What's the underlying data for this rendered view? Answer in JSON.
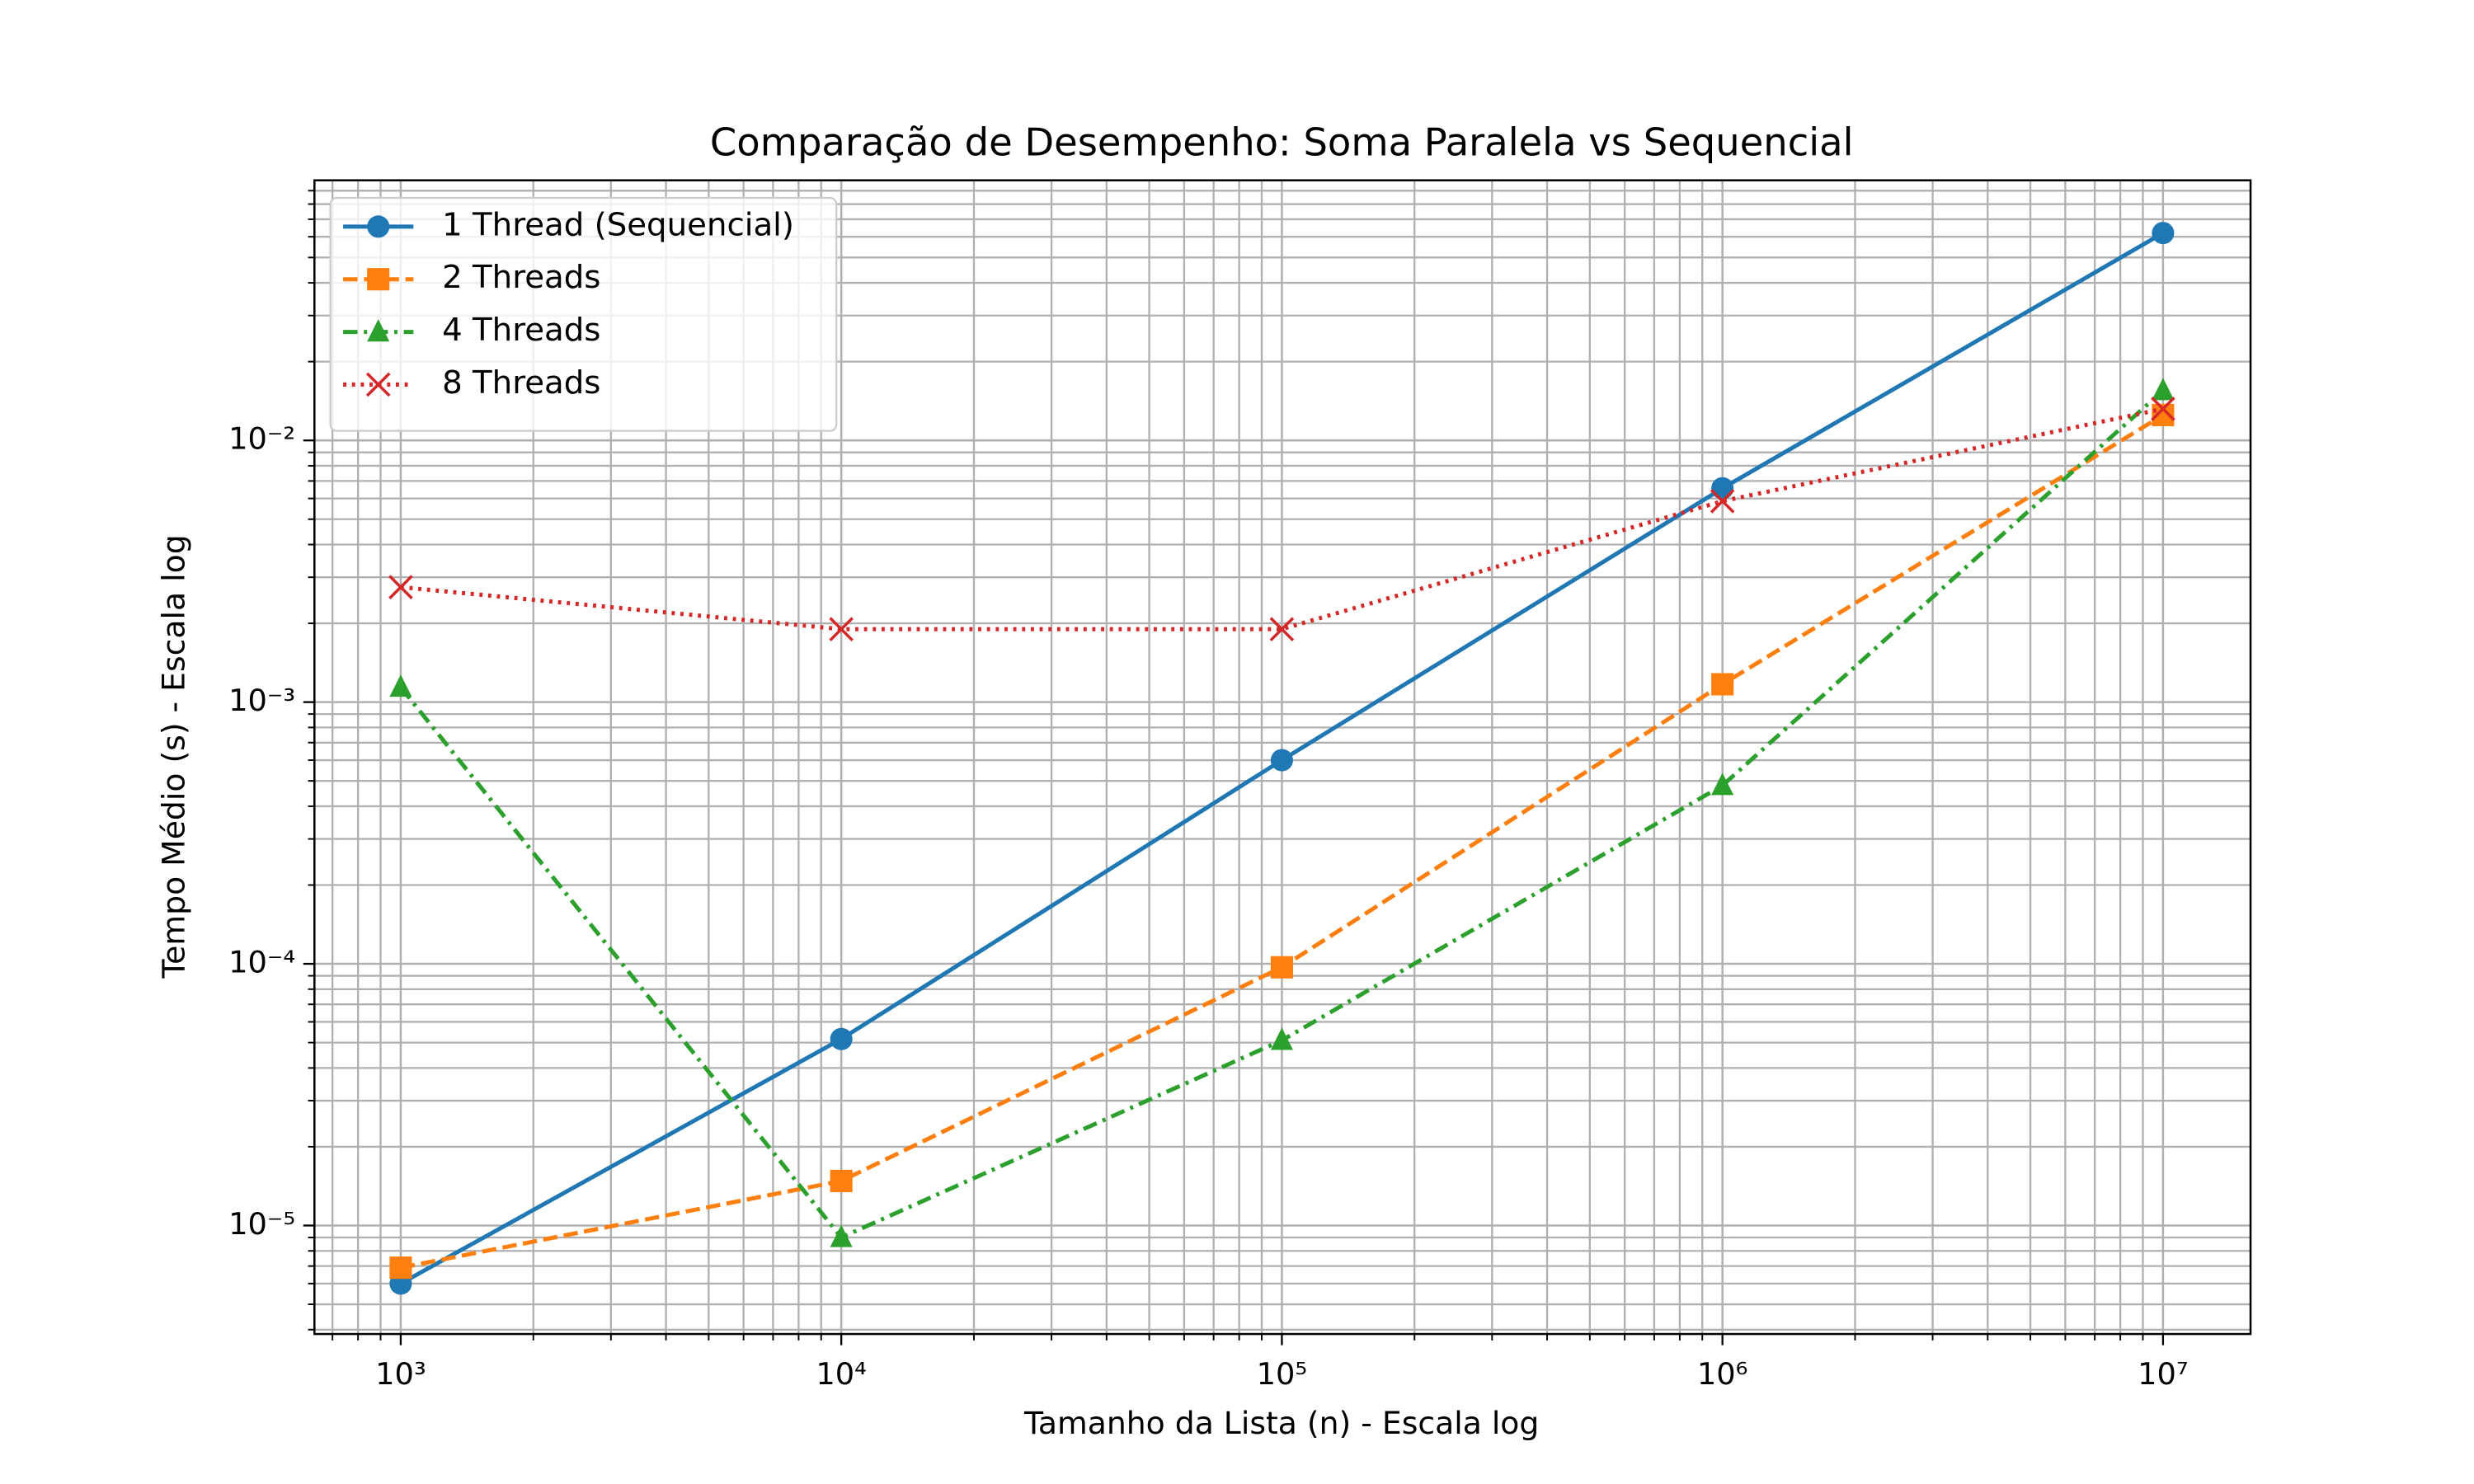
{
  "chart_data": {
    "type": "line",
    "title": "Comparação de Desempenho: Soma Paralela vs Sequencial",
    "xlabel": "Tamanho da Lista (n) - Escala log",
    "ylabel": "Tempo Médio (s) - Escala log",
    "xscale": "log",
    "yscale": "log",
    "grid": true,
    "legend": "upper left",
    "x": [
      1000,
      10000,
      100000,
      1000000,
      10000000
    ],
    "series": [
      {
        "name": "1 Thread (Sequencial)",
        "color": "#1f77b4",
        "linestyle": "solid",
        "marker": "circle",
        "values": [
          6e-06,
          5.16e-05,
          0.0006,
          0.00656,
          0.062
        ]
      },
      {
        "name": "2 Threads",
        "color": "#ff7f0e",
        "linestyle": "dashed",
        "marker": "square",
        "values": [
          6.9e-06,
          1.48e-05,
          9.7e-05,
          0.00117,
          0.0125
        ]
      },
      {
        "name": "4 Threads",
        "color": "#2ca02c",
        "linestyle": "dashdot",
        "marker": "triangle",
        "values": [
          0.00114,
          9e-06,
          5.1e-05,
          0.00048,
          0.0155
        ]
      },
      {
        "name": "8 Threads",
        "color": "#d62728",
        "linestyle": "dotted",
        "marker": "x",
        "values": [
          0.00275,
          0.0019,
          0.0019,
          0.00586,
          0.0132
        ]
      }
    ],
    "xlim": [
      637,
      15800000
    ],
    "ylim": [
      3.85e-06,
      0.0986
    ],
    "xticks": [
      {
        "value": 1000,
        "label": "10³"
      },
      {
        "value": 10000,
        "label": "10⁴"
      },
      {
        "value": 100000,
        "label": "10⁵"
      },
      {
        "value": 1000000,
        "label": "10⁶"
      },
      {
        "value": 10000000,
        "label": "10⁷"
      }
    ],
    "yticks": [
      {
        "value": 1e-05,
        "label": "10⁻⁵"
      },
      {
        "value": 0.0001,
        "label": "10⁻⁴"
      },
      {
        "value": 0.001,
        "label": "10⁻³"
      },
      {
        "value": 0.01,
        "label": "10⁻²"
      }
    ],
    "xminorticks": [
      700,
      800,
      900,
      2000,
      3000,
      4000,
      5000,
      6000,
      7000,
      8000,
      9000,
      20000,
      30000,
      40000,
      50000,
      60000,
      70000,
      80000,
      90000,
      200000,
      300000,
      400000,
      500000,
      600000,
      700000,
      800000,
      900000,
      2000000,
      3000000,
      4000000,
      5000000,
      6000000,
      7000000,
      8000000,
      9000000
    ],
    "yminorticks": [
      4e-06,
      5e-06,
      6e-06,
      7e-06,
      8e-06,
      9e-06,
      2e-05,
      3e-05,
      4e-05,
      5e-05,
      6e-05,
      7e-05,
      8e-05,
      9e-05,
      0.0002,
      0.0003,
      0.0004,
      0.0005,
      0.0006,
      0.0007,
      0.0008,
      0.0009,
      0.002,
      0.003,
      0.004,
      0.005,
      0.006,
      0.007,
      0.008,
      0.009,
      0.02,
      0.03,
      0.04,
      0.05,
      0.06,
      0.07,
      0.08,
      0.09
    ]
  }
}
